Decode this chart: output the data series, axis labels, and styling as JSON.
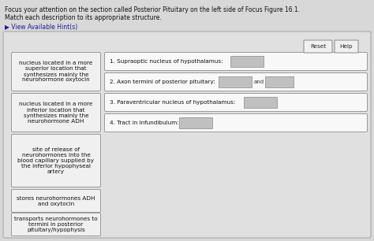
{
  "title_line1": "Focus your attention on the section called Posterior Pituitary on the left side of Focus Figure 16.1.",
  "title_line2": "Match each description to its appropriate structure.",
  "hint_text": "▶ View Available Hint(s)",
  "page_bg": "#d8d8d8",
  "content_bg": "#e6e6e6",
  "box_bg": "#f2f2f2",
  "answer_box_bg": "#c0c0c0",
  "left_boxes": [
    "nucleus located in a more\nsuperior location that\nsynthesizes mainly the\nneurohormone oxytocin",
    "nucleus located in a more\ninferior location that\nsynthesizes mainly the\nneurohormone ADH",
    "site of release of\nneurohormones into the\nblood capillary supplied by\nthe inferior hypophyseal\nartery",
    "stores neurohormones ADH\nand oxytocin",
    "transports neurohormones to\ntermini in posterior\npituitary/hypophysis"
  ],
  "right_items": [
    "1. Supraoptic nucleus of hypothalamus:",
    "2. Axon termini of posterior pituitary:",
    "3. Paraventricular nucleus of hypothalamus:",
    "4. Tract in infundibulum:"
  ],
  "reset_text": "Reset",
  "help_text": "Help"
}
